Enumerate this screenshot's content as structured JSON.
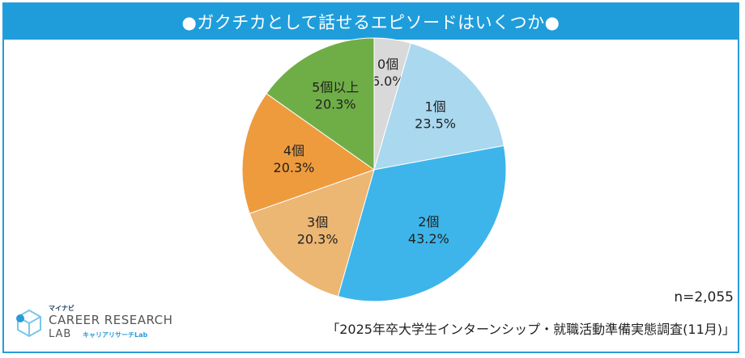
{
  "header": {
    "title": "●ガクチカとして話せるエピソードはいくつか●"
  },
  "footer": {
    "sample_size": "n=2,055",
    "source": "「2025年卒大学生インターンシップ・就職活動準備実態調査(11月)」"
  },
  "logo": {
    "brand": "マイナビ",
    "line1": "CAREER RESEARCH",
    "line2": "LAB",
    "sub": "キャリアリサーチLab"
  },
  "colors": {
    "frame": "#2a9bd8",
    "title_bar": "#1f9ddb"
  },
  "chart_data": {
    "type": "pie",
    "title": "●ガクチカとして話せるエピソードはいくつか●",
    "start": "12 o'clock, clockwise",
    "slices": [
      {
        "label": "0個",
        "value": 6.0,
        "value_label": "6.0%",
        "color": "#d9d9d9"
      },
      {
        "label": "1個",
        "value": 23.5,
        "value_label": "23.5%",
        "color": "#a9d8ef"
      },
      {
        "label": "2個",
        "value": 43.2,
        "value_label": "43.2%",
        "color": "#3db5ea"
      },
      {
        "label": "3個",
        "value": 20.3,
        "value_label": "20.3%",
        "color": "#ecb673"
      },
      {
        "label": "4個",
        "value": 20.3,
        "value_label": "20.3%",
        "color": "#ee9b3e"
      },
      {
        "label": "5個以上",
        "value": 20.3,
        "value_label": "20.3%",
        "color": "#6fae47"
      }
    ]
  }
}
